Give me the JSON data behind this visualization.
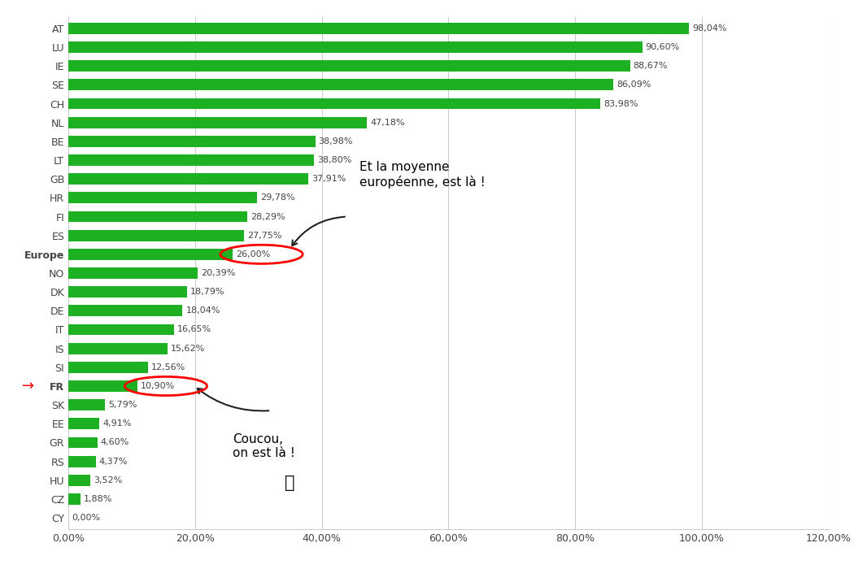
{
  "categories": [
    "AT",
    "LU",
    "IE",
    "SE",
    "CH",
    "NL",
    "BE",
    "LT",
    "GB",
    "HR",
    "FI",
    "ES",
    "Europe",
    "NO",
    "DK",
    "DE",
    "IT",
    "IS",
    "SI",
    "FR",
    "SK",
    "EE",
    "GR",
    "RS",
    "HU",
    "CZ",
    "CY"
  ],
  "values": [
    98.04,
    90.6,
    88.67,
    86.09,
    83.98,
    47.18,
    38.98,
    38.8,
    37.91,
    29.78,
    28.29,
    27.75,
    26.0,
    20.39,
    18.79,
    18.04,
    16.65,
    15.62,
    12.56,
    10.9,
    5.79,
    4.91,
    4.6,
    4.37,
    3.52,
    1.88,
    0.0
  ],
  "labels": [
    "98,04%",
    "90,60%",
    "88,67%",
    "86,09%",
    "83,98%",
    "47,18%",
    "38,98%",
    "38,80%",
    "37,91%",
    "29,78%",
    "28,29%",
    "27,75%",
    "26,00%",
    "20,39%",
    "18,79%",
    "18,04%",
    "16,65%",
    "15,62%",
    "12,56%",
    "10,90%",
    "5,79%",
    "4,91%",
    "4,60%",
    "4,37%",
    "3,52%",
    "1,88%",
    "0,00%"
  ],
  "bar_color": "#1DB022",
  "background_color": "#ffffff",
  "xlim": [
    0,
    120
  ],
  "xtick_labels": [
    "0,00%",
    "20,00%",
    "40,00%",
    "60,00%",
    "80,00%",
    "100,00%",
    "120,00%"
  ],
  "xtick_values": [
    0,
    20,
    40,
    60,
    80,
    100,
    120
  ],
  "grid_color": "#cccccc",
  "label_color": "#444444",
  "annotation_europe_text": "Et la moyenne\neuropéenne, est là !",
  "annotation_fr_text": "Coucou,\non est là !",
  "circle_color": "red",
  "arrow_color": "#222222"
}
